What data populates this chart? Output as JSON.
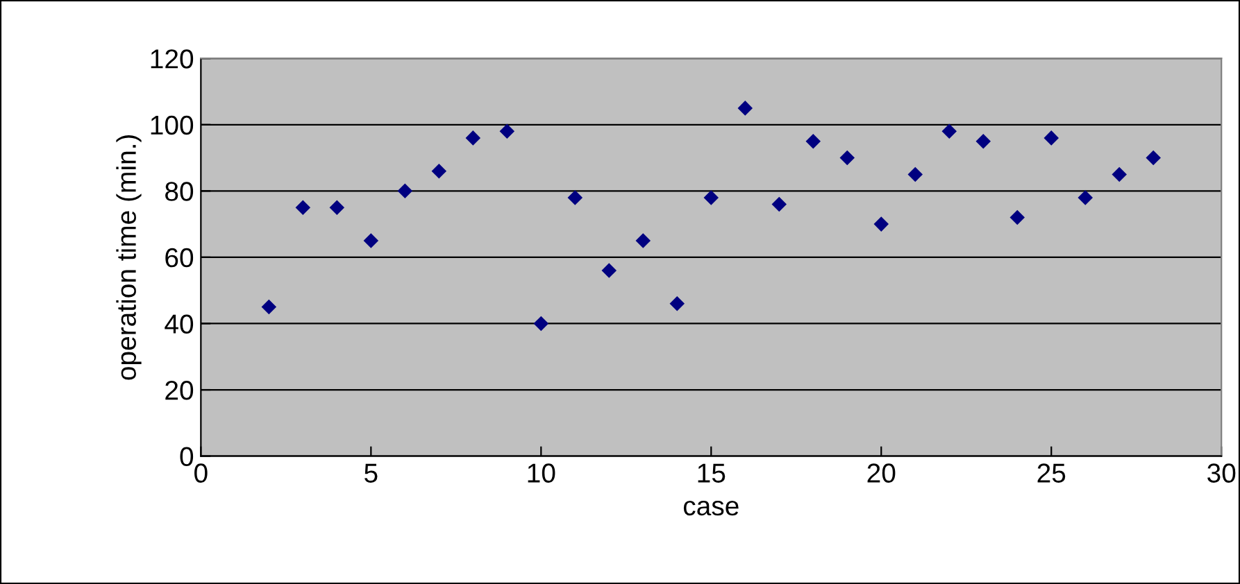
{
  "chart_data": {
    "type": "scatter",
    "xlabel": "case",
    "ylabel": "operation time (min.)",
    "x": [
      2,
      3,
      4,
      5,
      6,
      7,
      8,
      9,
      10,
      11,
      12,
      13,
      14,
      15,
      16,
      17,
      18,
      19,
      20,
      21,
      22,
      23,
      24,
      25,
      26,
      27,
      28
    ],
    "series": [
      {
        "color": "#000080",
        "values": [
          45,
          75,
          75,
          65,
          80,
          86,
          96,
          98,
          40,
          78,
          56,
          65,
          46,
          78,
          105,
          76,
          95,
          90,
          70,
          85,
          98,
          95,
          72,
          96,
          78,
          85,
          90
        ]
      }
    ],
    "xlim": [
      0,
      30
    ],
    "xticks": [
      0,
      5,
      10,
      15,
      20,
      25,
      30
    ],
    "ylim": [
      0,
      120
    ],
    "yticks": [
      0,
      20,
      40,
      60,
      80,
      100,
      120
    ],
    "grid": "y",
    "marker": "diamond"
  }
}
